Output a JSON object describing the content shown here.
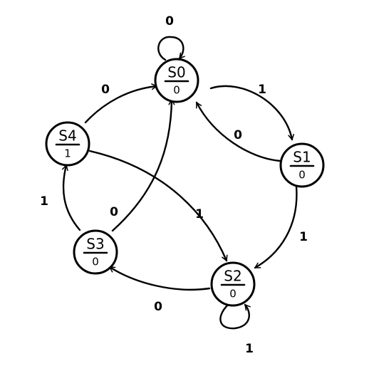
{
  "diagram": {
    "states": [
      {
        "id": "S0",
        "name": "S0",
        "output": "0"
      },
      {
        "id": "S1",
        "name": "S1",
        "output": "0"
      },
      {
        "id": "S2",
        "name": "S2",
        "output": "0"
      },
      {
        "id": "S3",
        "name": "S3",
        "output": "0"
      },
      {
        "id": "S4",
        "name": "S4",
        "output": "1"
      }
    ],
    "transitions": [
      {
        "id": "t-s0-s0",
        "from": "S0",
        "to": "S0",
        "input": "0"
      },
      {
        "id": "t-s0-s1",
        "from": "S0",
        "to": "S1",
        "input": "1"
      },
      {
        "id": "t-s1-s0",
        "from": "S1",
        "to": "S0",
        "input": "0"
      },
      {
        "id": "t-s1-s2",
        "from": "S1",
        "to": "S2",
        "input": "1"
      },
      {
        "id": "t-s2-s2",
        "from": "S2",
        "to": "S2",
        "input": "1"
      },
      {
        "id": "t-s2-s3",
        "from": "S2",
        "to": "S3",
        "input": "0"
      },
      {
        "id": "t-s3-s0",
        "from": "S3",
        "to": "S0",
        "input": "0"
      },
      {
        "id": "t-s3-s4",
        "from": "S3",
        "to": "S4",
        "input": "1"
      },
      {
        "id": "t-s4-s0",
        "from": "S4",
        "to": "S0",
        "input": "0"
      },
      {
        "id": "t-s4-s2",
        "from": "S4",
        "to": "S2",
        "input": "1"
      }
    ]
  }
}
